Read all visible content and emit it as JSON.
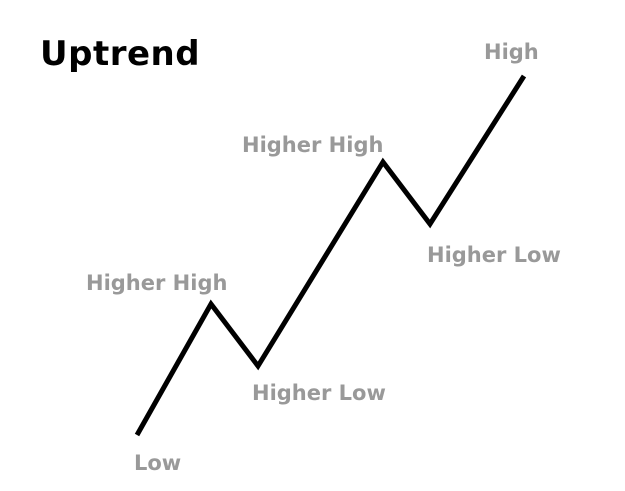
{
  "title": "Uptrend",
  "colors": {
    "title": "#000000",
    "line": "#000000",
    "labels": "#999999",
    "background": "#ffffff"
  },
  "labels": {
    "low": "Low",
    "higher_high_1": "Higher High",
    "higher_low_1": "Higher Low",
    "higher_high_2": "Higher High",
    "higher_low_2": "Higher Low",
    "high": "High"
  }
}
